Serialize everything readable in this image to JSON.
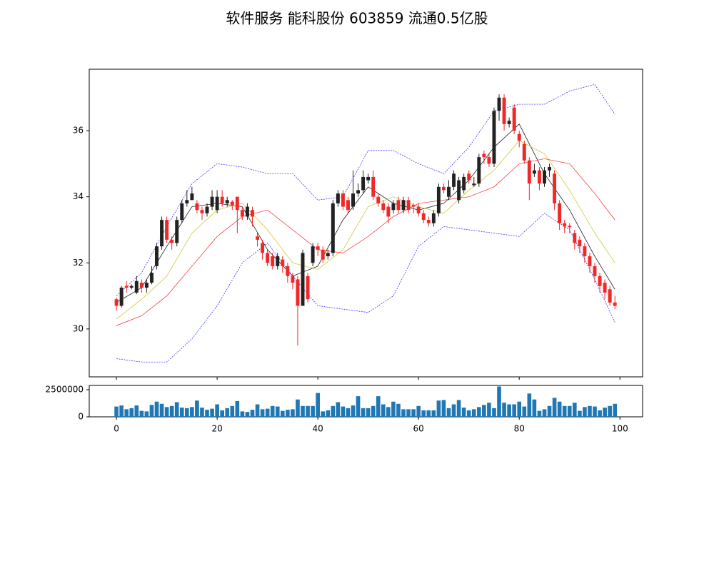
{
  "chart_data": [
    {
      "type": "candlestick",
      "title": "软件服务 能科股份 603859 流通0.5亿股",
      "up_color": "#222222",
      "down_color": "#f02828",
      "ylim": [
        28.55,
        37.86
      ],
      "yticks": [
        30,
        32,
        34,
        36
      ],
      "xlim": [
        -5.4,
        104.5
      ],
      "x": [
        0,
        1,
        2,
        3,
        4,
        5,
        6,
        7,
        8,
        9,
        10,
        11,
        12,
        13,
        14,
        15,
        16,
        17,
        18,
        19,
        20,
        21,
        22,
        23,
        24,
        25,
        26,
        27,
        28,
        29,
        30,
        31,
        32,
        33,
        34,
        35,
        36,
        37,
        38,
        39,
        40,
        41,
        42,
        43,
        44,
        45,
        46,
        47,
        48,
        49,
        50,
        51,
        52,
        53,
        54,
        55,
        56,
        57,
        58,
        59,
        60,
        61,
        62,
        63,
        64,
        65,
        66,
        67,
        68,
        69,
        70,
        71,
        72,
        73,
        74,
        75,
        76,
        77,
        78,
        79,
        80,
        81,
        82,
        83,
        84,
        85,
        86,
        87,
        88,
        89,
        90,
        91,
        92,
        93,
        94,
        95,
        96,
        97,
        98,
        99
      ],
      "open": [
        30.9,
        30.7,
        31.3,
        31.25,
        31.1,
        31.4,
        31.25,
        31.4,
        31.9,
        32.5,
        33.3,
        32.7,
        32.6,
        33.3,
        33.8,
        33.9,
        33.8,
        33.6,
        33.5,
        33.7,
        33.6,
        34.0,
        33.8,
        33.85,
        34.0,
        33.6,
        33.4,
        33.6,
        32.8,
        32.6,
        32.3,
        32.2,
        31.9,
        32.1,
        31.9,
        31.6,
        31.5,
        30.7,
        31.6,
        32.0,
        32.5,
        32.4,
        32.2,
        32.3,
        33.8,
        34.1,
        33.9,
        33.7,
        34.1,
        34.2,
        34.5,
        34.6,
        34.0,
        33.8,
        33.7,
        33.6,
        33.9,
        33.6,
        33.9,
        33.75,
        33.7,
        33.5,
        33.3,
        33.2,
        33.5,
        34.3,
        34.0,
        34.3,
        33.9,
        34.2,
        34.7,
        34.35,
        34.4,
        35.3,
        35.2,
        35.0,
        36.6,
        37.0,
        36.2,
        36.7,
        35.9,
        35.6,
        35.1,
        34.7,
        34.8,
        34.4,
        34.8,
        34.7,
        33.8,
        33.2,
        33.12,
        32.9,
        32.7,
        32.5,
        32.2,
        31.9,
        31.6,
        31.4,
        31.2,
        30.8
      ],
      "high": [
        30.95,
        31.3,
        31.45,
        31.35,
        31.6,
        31.5,
        31.5,
        31.9,
        32.6,
        33.4,
        33.4,
        32.8,
        33.4,
        33.9,
        34.2,
        34.3,
        33.9,
        33.7,
        33.8,
        34.2,
        34.2,
        34.2,
        34.0,
        33.9,
        34.0,
        33.7,
        33.8,
        33.7,
        32.9,
        32.7,
        32.4,
        32.3,
        32.3,
        32.2,
        32.0,
        31.7,
        31.6,
        32.4,
        31.7,
        32.6,
        32.6,
        32.5,
        32.4,
        33.9,
        34.2,
        34.2,
        34.0,
        34.8,
        34.4,
        34.8,
        34.7,
        34.8,
        34.1,
        33.9,
        33.8,
        33.9,
        34.0,
        34.0,
        34.0,
        33.8,
        33.8,
        33.6,
        33.4,
        33.6,
        34.4,
        34.4,
        34.5,
        34.8,
        34.6,
        34.7,
        34.8,
        34.6,
        35.3,
        35.4,
        35.3,
        36.7,
        37.1,
        37.1,
        36.4,
        36.8,
        36.0,
        35.7,
        35.2,
        35.0,
        34.9,
        34.9,
        35.0,
        34.8,
        33.9,
        33.3,
        33.2,
        33.0,
        32.8,
        32.6,
        32.3,
        32.0,
        31.7,
        31.5,
        31.3,
        31.0
      ],
      "low": [
        30.55,
        30.65,
        31.1,
        31.2,
        31.05,
        31.1,
        31.1,
        31.35,
        31.8,
        32.4,
        32.6,
        32.4,
        32.5,
        33.2,
        33.7,
        33.9,
        33.5,
        33.3,
        33.4,
        33.6,
        33.5,
        33.7,
        33.7,
        33.6,
        32.9,
        33.3,
        33.3,
        33.1,
        32.5,
        32.1,
        31.9,
        31.8,
        31.8,
        31.7,
        31.4,
        31.2,
        29.5,
        30.7,
        30.8,
        31.9,
        32.2,
        32.0,
        32.1,
        32.2,
        33.7,
        33.6,
        33.5,
        33.6,
        34.0,
        34.1,
        34.4,
        33.9,
        33.7,
        33.5,
        33.2,
        33.5,
        33.5,
        33.5,
        33.5,
        33.5,
        33.4,
        33.2,
        33.1,
        33.1,
        33.4,
        34.1,
        33.9,
        34.2,
        33.8,
        34.1,
        34.4,
        34.3,
        34.3,
        35.0,
        34.9,
        34.9,
        36.3,
        36.0,
        36.1,
        35.9,
        35.5,
        35.0,
        33.9,
        34.6,
        34.2,
        34.3,
        34.6,
        33.6,
        33.0,
        32.9,
        32.9,
        32.4,
        32.3,
        32.0,
        31.7,
        31.4,
        31.1,
        30.9,
        30.7,
        30.6
      ],
      "close": [
        30.7,
        31.25,
        31.25,
        31.3,
        31.45,
        31.25,
        31.4,
        31.7,
        32.5,
        33.3,
        32.7,
        32.6,
        33.3,
        33.8,
        33.9,
        34.1,
        33.6,
        33.5,
        33.7,
        34.0,
        34.0,
        33.8,
        33.9,
        33.75,
        33.6,
        33.4,
        33.7,
        33.4,
        32.7,
        32.3,
        32.0,
        31.9,
        32.2,
        31.9,
        31.6,
        31.4,
        30.7,
        32.3,
        30.9,
        32.5,
        32.4,
        32.1,
        32.3,
        33.8,
        34.1,
        33.7,
        33.6,
        34.1,
        34.2,
        34.6,
        34.6,
        34.0,
        33.8,
        33.6,
        33.4,
        33.8,
        33.6,
        33.9,
        33.6,
        33.7,
        33.5,
        33.3,
        33.2,
        33.5,
        34.3,
        34.2,
        34.3,
        34.7,
        34.5,
        34.6,
        34.5,
        34.4,
        35.2,
        35.2,
        35.0,
        36.6,
        37.0,
        36.2,
        36.3,
        36.0,
        35.7,
        35.1,
        34.4,
        34.8,
        34.4,
        34.8,
        34.9,
        33.8,
        33.2,
        33.1,
        33.08,
        32.6,
        32.5,
        32.2,
        31.9,
        31.6,
        31.3,
        31.1,
        30.8,
        30.7
      ],
      "lines": [
        {
          "color": "#000000",
          "style": "solid",
          "x": [
            0,
            5,
            10,
            15,
            20,
            25,
            30,
            35,
            40,
            45,
            50,
            55,
            60,
            65,
            70,
            75,
            80,
            85,
            90,
            95,
            99
          ],
          "values": [
            30.8,
            31.25,
            32.5,
            33.7,
            33.8,
            33.7,
            32.4,
            31.6,
            31.9,
            33.3,
            34.3,
            33.8,
            33.6,
            33.8,
            34.5,
            35.5,
            36.2,
            34.7,
            33.6,
            32.2,
            31.2
          ]
        },
        {
          "color": "#c8c020",
          "style": "solid",
          "x": [
            0,
            5,
            10,
            15,
            20,
            25,
            30,
            35,
            40,
            45,
            50,
            55,
            60,
            65,
            70,
            75,
            80,
            85,
            90,
            95,
            99
          ],
          "values": [
            30.3,
            30.9,
            31.6,
            32.9,
            33.6,
            33.8,
            33.0,
            32.0,
            31.8,
            32.4,
            33.7,
            34.0,
            33.7,
            33.5,
            34.2,
            34.8,
            35.7,
            35.3,
            34.2,
            32.9,
            32.0
          ]
        },
        {
          "color": "#ff2020",
          "style": "solid",
          "x": [
            0,
            5,
            10,
            15,
            20,
            25,
            30,
            35,
            40,
            45,
            50,
            55,
            60,
            65,
            70,
            75,
            80,
            85,
            90,
            95,
            99
          ],
          "values": [
            30.1,
            30.4,
            31.0,
            31.9,
            32.8,
            33.4,
            33.6,
            33.0,
            32.4,
            32.3,
            32.8,
            33.4,
            33.8,
            33.9,
            34.0,
            34.3,
            35.0,
            35.15,
            35.0,
            34.1,
            33.3
          ]
        },
        {
          "color": "#2020ff",
          "style": "dashed",
          "x": [
            0,
            5,
            10,
            15,
            20,
            25,
            30,
            35,
            40,
            45,
            50,
            55,
            60,
            65,
            70,
            75,
            80,
            85,
            90,
            95,
            99
          ],
          "values": [
            31.0,
            31.7,
            33.1,
            34.4,
            35.0,
            34.9,
            34.7,
            34.7,
            33.9,
            34.0,
            35.4,
            35.4,
            35.0,
            34.7,
            35.5,
            36.6,
            36.8,
            36.8,
            37.2,
            37.4,
            36.5
          ]
        },
        {
          "color": "#2020ff",
          "style": "dashed",
          "x": [
            0,
            5,
            10,
            15,
            20,
            25,
            30,
            35,
            40,
            45,
            50,
            55,
            60,
            65,
            70,
            75,
            80,
            85,
            90,
            95,
            99
          ],
          "values": [
            29.1,
            29.0,
            29.0,
            29.7,
            30.7,
            32.0,
            32.6,
            31.6,
            30.7,
            30.6,
            30.5,
            31.0,
            32.5,
            33.1,
            33.0,
            32.9,
            32.8,
            33.5,
            33.0,
            31.5,
            30.2
          ]
        }
      ]
    },
    {
      "type": "bar",
      "color": "#1f77b4",
      "ylim": [
        0,
        2894737
      ],
      "yticks": [
        0,
        2500000
      ],
      "xlim": [
        -5.4,
        104.5
      ],
      "xticks": [
        0,
        20,
        40,
        60,
        80,
        100
      ],
      "x": [
        0,
        1,
        2,
        3,
        4,
        5,
        6,
        7,
        8,
        9,
        10,
        11,
        12,
        13,
        14,
        15,
        16,
        17,
        18,
        19,
        20,
        21,
        22,
        23,
        24,
        25,
        26,
        27,
        28,
        29,
        30,
        31,
        32,
        33,
        34,
        35,
        36,
        37,
        38,
        39,
        40,
        41,
        42,
        43,
        44,
        45,
        46,
        47,
        48,
        49,
        50,
        51,
        52,
        53,
        54,
        55,
        56,
        57,
        58,
        59,
        60,
        61,
        62,
        63,
        64,
        65,
        66,
        67,
        68,
        69,
        70,
        71,
        72,
        73,
        74,
        75,
        76,
        77,
        78,
        79,
        80,
        81,
        82,
        83,
        84,
        85,
        86,
        87,
        88,
        89,
        90,
        91,
        92,
        93,
        94,
        95,
        96,
        97,
        98,
        99
      ],
      "values": [
        950000,
        1050000,
        700000,
        800000,
        1050000,
        550000,
        500000,
        1100000,
        1400000,
        1200000,
        900000,
        1000000,
        1350000,
        850000,
        800000,
        900000,
        1500000,
        850000,
        650000,
        750000,
        1150000,
        600000,
        800000,
        1000000,
        1450000,
        500000,
        450000,
        650000,
        1150000,
        700000,
        750000,
        1000000,
        950000,
        550000,
        650000,
        700000,
        1600000,
        1000000,
        1000000,
        1000000,
        2200000,
        500000,
        600000,
        1000000,
        1350000,
        950000,
        800000,
        1050000,
        1900000,
        800000,
        800000,
        1000000,
        1900000,
        1150000,
        900000,
        1400000,
        1200000,
        700000,
        700000,
        700000,
        1000000,
        600000,
        600000,
        600000,
        1500000,
        1550000,
        800000,
        1150000,
        1550000,
        850000,
        600000,
        700000,
        900000,
        1100000,
        1300000,
        800000,
        2800000,
        1300000,
        1150000,
        1150000,
        1400000,
        950000,
        2150000,
        1600000,
        550000,
        700000,
        1000000,
        1750000,
        1400000,
        1000000,
        1000000,
        1300000,
        550000,
        900000,
        1000000,
        950000,
        600000,
        850000,
        1000000,
        1200000
      ]
    }
  ]
}
